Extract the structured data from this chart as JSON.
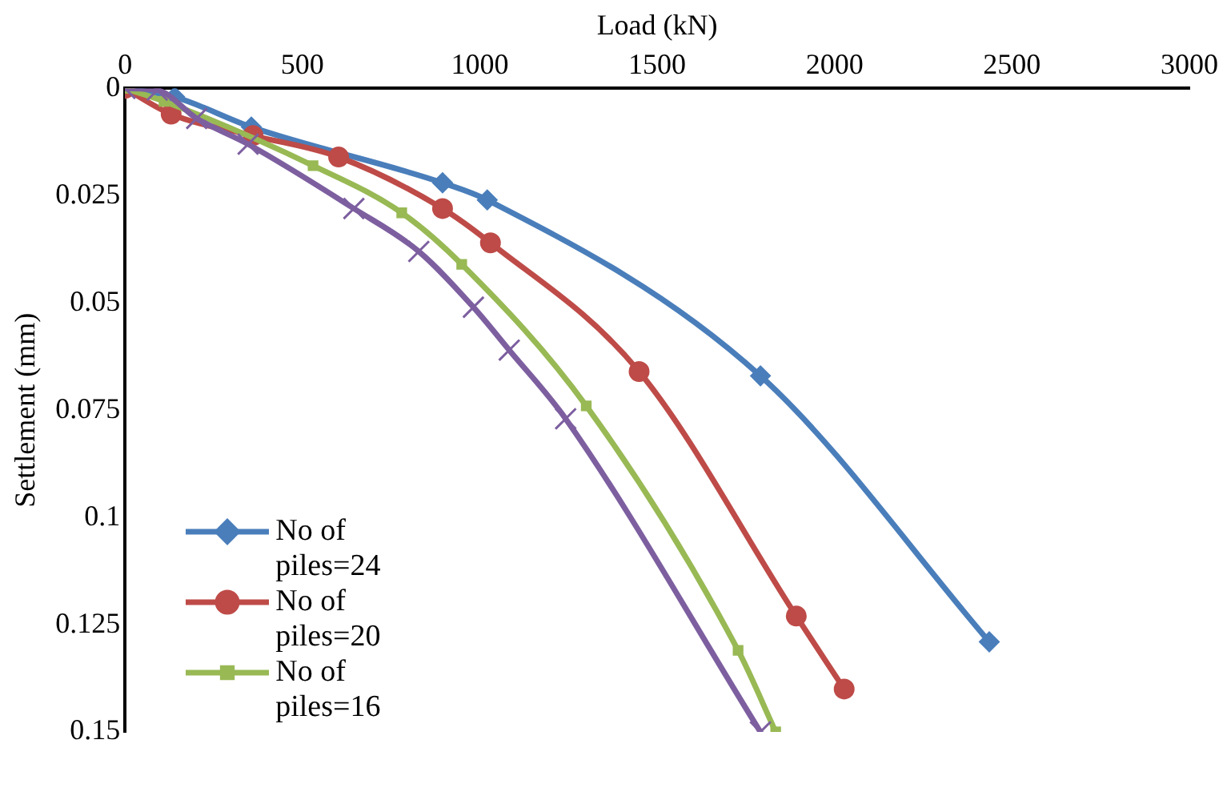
{
  "chart_data": {
    "type": "line",
    "xlabel": "Load (kN)",
    "ylabel": "Settlement (mm)",
    "xlim": [
      0,
      3000
    ],
    "xticks": [
      0,
      500,
      1000,
      1500,
      2000,
      2500,
      3000
    ],
    "ylim": [
      0.15,
      0
    ],
    "yticks": [
      0,
      0.025,
      0.05,
      0.075,
      0.1,
      0.125,
      0.15
    ],
    "grid": false,
    "legend": "bottom left",
    "line_style": "solid",
    "series": [
      {
        "name": "No of piles=24",
        "color": "#4a7ebb",
        "marker": "diamond",
        "x": [
          0,
          140,
          356,
          895,
          1021,
          1791,
          2436
        ],
        "values": [
          0,
          0.002,
          0.009,
          0.022,
          0.026,
          0.067,
          0.129
        ]
      },
      {
        "name": "No of piles=20",
        "color": "#be4b48",
        "marker": "circle",
        "x": [
          0,
          130,
          361,
          602,
          895,
          1030,
          1449,
          1892,
          2027
        ],
        "values": [
          0,
          0.006,
          0.011,
          0.016,
          0.028,
          0.036,
          0.066,
          0.123,
          0.14
        ]
      },
      {
        "name": "No of piles=16",
        "color": "#98b954",
        "marker": "square",
        "x": [
          0,
          110,
          530,
          780,
          949,
          1300,
          1728,
          1834
        ],
        "values": [
          0,
          0.003,
          0.018,
          0.029,
          0.041,
          0.074,
          0.131,
          0.15
        ]
      },
      {
        "color": "#7d5fa0",
        "marker": "cross",
        "x": [
          0,
          91,
          202,
          347,
          645,
          828,
          982,
          1083,
          1242,
          1791
        ],
        "values": [
          0,
          0.0004,
          0.007,
          0.013,
          0.028,
          0.038,
          0.051,
          0.061,
          0.077,
          0.15
        ]
      }
    ]
  }
}
